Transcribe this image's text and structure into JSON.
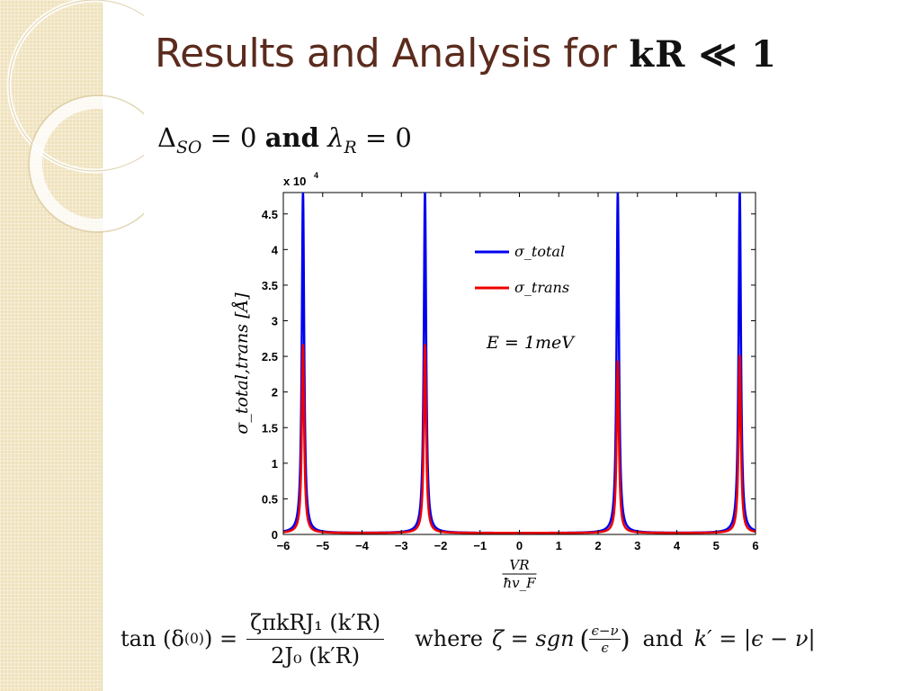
{
  "slide": {
    "title": "Results and Analysis for",
    "title_math": "kR ≪ 1",
    "condition": {
      "part1": "Δ",
      "part1_sub": "SO",
      "part2": " = 0 ",
      "connector": "and",
      "part3": " λ",
      "part3_sub": "R",
      "part4": " = 0"
    },
    "formula": {
      "lhs": "tan (δ",
      "lhs_sub": "(0)",
      "lhs_close": ") =",
      "numerator": "ζπkRJ₁ (k′R)",
      "denominator": "2J₀ (k′R)",
      "where_text": "where",
      "zeta_def": "ζ = sgn",
      "zeta_num": "ϵ−ν",
      "zeta_den": "ϵ",
      "and_text": "and",
      "k_def": "k′ = |ϵ − ν|"
    }
  },
  "colors": {
    "title": "#5b2b1d",
    "sidebar": "#efe2bd",
    "total_series": "#0000ee",
    "trans_series": "#ee0000"
  },
  "chart_data": {
    "type": "line",
    "scale_label": "x 10",
    "scale_exponent": "4",
    "ylabel": "σ_total,trans [Å]",
    "xlabel_num": "VR",
    "xlabel_den": "ħv_F",
    "xlim": [
      -6,
      6
    ],
    "ylim": [
      0,
      4.8
    ],
    "xticks": [
      "−6",
      "−5",
      "−4",
      "−3",
      "−2",
      "−1",
      "0",
      "1",
      "2",
      "3",
      "4",
      "5",
      "6"
    ],
    "yticks": [
      "0",
      "0.5",
      "1",
      "1.5",
      "2",
      "2.5",
      "3",
      "3.5",
      "4",
      "4.5"
    ],
    "annotation": "E = 1meV",
    "series": [
      {
        "name": "σ_total",
        "color": "#0000ee",
        "peaks": [
          {
            "x": -5.5,
            "y": 4.8
          },
          {
            "x": -2.4,
            "y": 4.8
          },
          {
            "x": 2.5,
            "y": 4.8
          },
          {
            "x": 5.6,
            "y": 4.8
          }
        ],
        "baseline": 0.02
      },
      {
        "name": "σ_trans",
        "color": "#ee0000",
        "peaks": [
          {
            "x": -5.5,
            "y": 2.65
          },
          {
            "x": -2.4,
            "y": 2.65
          },
          {
            "x": 2.5,
            "y": 2.42
          },
          {
            "x": 5.6,
            "y": 2.5
          }
        ],
        "baseline": 0.02
      }
    ],
    "legend_placement": "top-center",
    "grid": false
  }
}
